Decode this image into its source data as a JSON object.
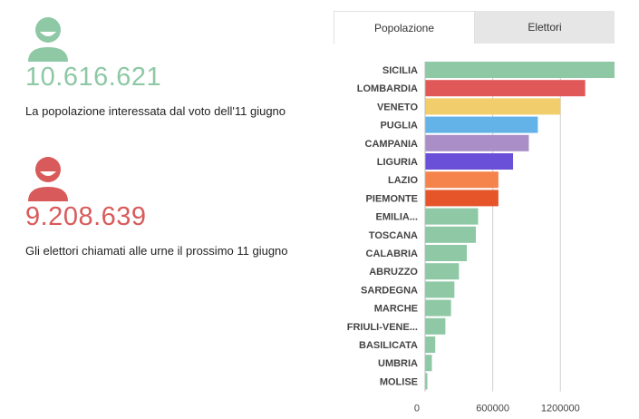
{
  "stats": {
    "population": {
      "value": "10.616.621",
      "description": "La popolazione interessata dal voto dell'11 giugno",
      "icon": "person-icon",
      "color": "#8ec8a5"
    },
    "voters": {
      "value": "9.208.639",
      "description": "Gli elettori chiamati alle urne il prossimo 11 giugno",
      "icon": "person-icon",
      "color": "#d95a5a"
    }
  },
  "tabs": [
    {
      "label": "Popolazione",
      "active": true
    },
    {
      "label": "Elettori",
      "active": false
    }
  ],
  "chart_data": {
    "type": "bar",
    "orientation": "horizontal",
    "categories": [
      "SICILIA",
      "LOMBARDIA",
      "VENETO",
      "PUGLIA",
      "CAMPANIA",
      "LIGURIA",
      "LAZIO",
      "PIEMONTE",
      "EMILIA...",
      "TOSCANA",
      "CALABRIA",
      "ABRUZZO",
      "SARDEGNA",
      "MARCHE",
      "FRIULI-VENE...",
      "BASILICATA",
      "UMBRIA",
      "MOLISE"
    ],
    "values": [
      1680000,
      1420000,
      1200000,
      1000000,
      920000,
      780000,
      650000,
      650000,
      470000,
      450000,
      370000,
      300000,
      260000,
      230000,
      180000,
      90000,
      60000,
      20000
    ],
    "colors": [
      "#8ec8a5",
      "#e05858",
      "#f2cd6b",
      "#63b3e8",
      "#a98ec7",
      "#6a4fd8",
      "#f5844c",
      "#e6542a",
      "#8ec8a5",
      "#8ec8a5",
      "#8ec8a5",
      "#8ec8a5",
      "#8ec8a5",
      "#8ec8a5",
      "#8ec8a5",
      "#8ec8a5",
      "#8ec8a5",
      "#8ec8a5"
    ],
    "xticks": [
      0,
      600000,
      1200000
    ],
    "xtick_labels": [
      "0",
      "600000",
      "1200000"
    ],
    "xlim": [
      0,
      1680000
    ],
    "grid": true
  }
}
